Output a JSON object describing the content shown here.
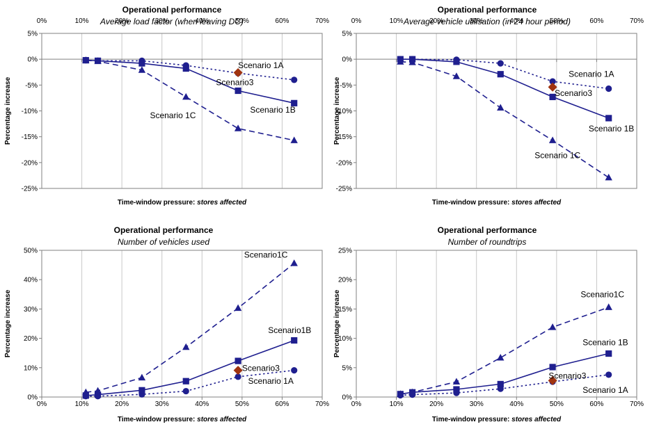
{
  "colors": {
    "series": "#1f1f8f",
    "scenario3": "#a0330f",
    "grid": "#c8c8c8",
    "axis": "#808080",
    "text": "#000000"
  },
  "chart_data": [
    {
      "type": "line",
      "title": "Operational performance",
      "subtitle": "Average load factor (when leaving DC)",
      "ylabel": "Percentage increase",
      "xlabel_prefix": "Time-window pressure: ",
      "xlabel_em": "stores affected",
      "xlim": [
        0,
        70
      ],
      "ylim": [
        -25,
        5
      ],
      "x_ticks": [
        0,
        10,
        20,
        30,
        40,
        50,
        60,
        70
      ],
      "y_ticks": [
        5,
        0,
        -5,
        -10,
        -15,
        -20,
        -25
      ],
      "x_tick_labels": [
        "0%",
        "10%",
        "20%",
        "30%",
        "40%",
        "50%",
        "60%",
        "70%"
      ],
      "y_tick_labels": [
        "5%",
        "0%",
        "-5%",
        "-10%",
        "-15%",
        "-20%",
        "-25%"
      ],
      "x_axis_position": "top",
      "grid": "vertical",
      "series": [
        {
          "name": "Scenario 1A",
          "marker": "circle",
          "dash": "dot",
          "x": [
            11,
            14,
            25,
            36,
            49,
            63
          ],
          "y": [
            -0.2,
            -0.3,
            -0.3,
            -1.2,
            -2.7,
            -4.0
          ],
          "label_anchor": [
            49,
            -1.2
          ]
        },
        {
          "name": "Scenario 1B",
          "marker": "square",
          "dash": "solid",
          "x": [
            11,
            14,
            25,
            36,
            49,
            63
          ],
          "y": [
            -0.2,
            -0.3,
            -0.8,
            -1.8,
            -6.1,
            -8.5
          ],
          "label_anchor": [
            52,
            -9.8
          ]
        },
        {
          "name": "Scenario 1C",
          "marker": "triangle",
          "dash": "dash",
          "x": [
            11,
            14,
            25,
            36,
            49,
            63
          ],
          "y": [
            -0.2,
            -0.4,
            -2.1,
            -7.3,
            -13.4,
            -15.7
          ],
          "label_anchor": [
            27,
            -10.9
          ]
        },
        {
          "name": "Scenario3",
          "marker": "diamond",
          "dash": "none",
          "x": [
            49
          ],
          "y": [
            -2.6
          ],
          "label_anchor": [
            43.5,
            -4.5
          ]
        }
      ]
    },
    {
      "type": "line",
      "title": "Operational performance",
      "subtitle": "Average vehicle utilisation (in 24 hour period)",
      "ylabel": "Percentage increase",
      "xlabel_prefix": "Time-window pressure: ",
      "xlabel_em": "stores affected",
      "xlim": [
        0,
        70
      ],
      "ylim": [
        -25,
        5
      ],
      "x_ticks": [
        0,
        10,
        20,
        30,
        40,
        50,
        60,
        70
      ],
      "y_ticks": [
        5,
        0,
        -5,
        -10,
        -15,
        -20,
        -25
      ],
      "x_tick_labels": [
        "0%",
        "10%",
        "20%",
        "30%",
        "40%",
        "50%",
        "60%",
        "70%"
      ],
      "y_tick_labels": [
        "5%",
        "0%",
        "-5%",
        "-10%",
        "-15%",
        "-20%",
        "-25%"
      ],
      "x_axis_position": "top",
      "grid": "vertical",
      "series": [
        {
          "name": "Scenario 1A",
          "marker": "circle",
          "dash": "dot",
          "x": [
            11,
            14,
            25,
            36,
            49,
            63
          ],
          "y": [
            0,
            0,
            -0.1,
            -0.8,
            -4.3,
            -5.7
          ],
          "label_anchor": [
            53,
            -2.9
          ]
        },
        {
          "name": "Scenario 1B",
          "marker": "square",
          "dash": "solid",
          "x": [
            11,
            14,
            25,
            36,
            49,
            63
          ],
          "y": [
            0,
            0,
            -0.5,
            -2.9,
            -7.3,
            -11.4
          ],
          "label_anchor": [
            58,
            -13.4
          ]
        },
        {
          "name": "Scenario 1C",
          "marker": "triangle",
          "dash": "dash",
          "x": [
            11,
            14,
            25,
            36,
            49,
            63
          ],
          "y": [
            -0.5,
            -0.6,
            -3.3,
            -9.4,
            -15.7,
            -22.9
          ],
          "label_anchor": [
            44.5,
            -18.6
          ]
        },
        {
          "name": "Scenario3",
          "marker": "diamond",
          "dash": "none",
          "x": [
            49
          ],
          "y": [
            -5.4
          ],
          "label_anchor": [
            49.5,
            -6.6
          ]
        }
      ]
    },
    {
      "type": "line",
      "title": "Operational performance",
      "subtitle": "Number of vehicles used",
      "ylabel": "Percentage increase",
      "xlabel_prefix": "Time-window pressure: ",
      "xlabel_em": "stores affected",
      "xlim": [
        0,
        70
      ],
      "ylim": [
        0,
        50
      ],
      "x_ticks": [
        0,
        10,
        20,
        30,
        40,
        50,
        60,
        70
      ],
      "y_ticks": [
        50,
        40,
        30,
        20,
        10,
        0
      ],
      "x_tick_labels": [
        "0%",
        "10%",
        "20%",
        "30%",
        "40%",
        "50%",
        "60%",
        "70%"
      ],
      "y_tick_labels": [
        "50%",
        "40%",
        "30%",
        "20%",
        "10%",
        "0%"
      ],
      "x_axis_position": "bottom",
      "grid": "vertical",
      "series": [
        {
          "name": "Scenario 1A",
          "marker": "circle",
          "dash": "dot",
          "x": [
            11,
            14,
            25,
            36,
            49,
            63
          ],
          "y": [
            0.3,
            0.3,
            0.9,
            2.0,
            6.9,
            9.1
          ],
          "label_anchor": [
            51.5,
            5.5
          ]
        },
        {
          "name": "Scenario1B",
          "marker": "square",
          "dash": "solid",
          "x": [
            11,
            14,
            25,
            36,
            49,
            63
          ],
          "y": [
            0.5,
            0.8,
            2.3,
            5.4,
            12.3,
            19.3
          ],
          "label_anchor": [
            56.5,
            22.8
          ]
        },
        {
          "name": "Scenario1C",
          "marker": "triangle",
          "dash": "dash",
          "x": [
            11,
            14,
            25,
            36,
            49,
            63
          ],
          "y": [
            1.6,
            2.1,
            6.6,
            17.0,
            30.3,
            45.6
          ],
          "label_anchor": [
            50.5,
            48.5
          ]
        },
        {
          "name": "Scenario3",
          "marker": "diamond",
          "dash": "none",
          "x": [
            49
          ],
          "y": [
            9.1
          ],
          "label_anchor": [
            50,
            9.8
          ]
        }
      ]
    },
    {
      "type": "line",
      "title": "Operational performance",
      "subtitle": "Number of roundtrips",
      "ylabel": "Percentage increase",
      "xlabel_prefix": "Time-window pressure: ",
      "xlabel_em": "stores affected",
      "xlim": [
        0,
        70
      ],
      "ylim": [
        0,
        25
      ],
      "x_ticks": [
        0,
        10,
        20,
        30,
        40,
        50,
        60,
        70
      ],
      "y_ticks": [
        25,
        20,
        15,
        10,
        5,
        0
      ],
      "x_tick_labels": [
        "0%",
        "10%",
        "20%",
        "30%",
        "40%",
        "50%",
        "60%",
        "70%"
      ],
      "y_tick_labels": [
        "25%",
        "20%",
        "15%",
        "10%",
        "5%",
        "0%"
      ],
      "x_axis_position": "bottom",
      "grid": "vertical",
      "series": [
        {
          "name": "Scenario 1A",
          "marker": "circle",
          "dash": "dot",
          "x": [
            11,
            14,
            25,
            36,
            49,
            63
          ],
          "y": [
            0.3,
            0.4,
            0.7,
            1.4,
            2.6,
            3.8
          ],
          "label_anchor": [
            56.5,
            1.2
          ]
        },
        {
          "name": "Scenario 1B",
          "marker": "square",
          "dash": "solid",
          "x": [
            11,
            14,
            25,
            36,
            49,
            63
          ],
          "y": [
            0.5,
            0.8,
            1.3,
            2.2,
            5.1,
            7.4
          ],
          "label_anchor": [
            56.5,
            9.3
          ]
        },
        {
          "name": "Scenario1C",
          "marker": "triangle",
          "dash": "dash",
          "x": [
            11,
            14,
            25,
            36,
            49,
            63
          ],
          "y": [
            0.5,
            0.8,
            2.6,
            6.7,
            11.9,
            15.3
          ],
          "label_anchor": [
            56,
            17.5
          ]
        },
        {
          "name": "Scenario3",
          "marker": "diamond",
          "dash": "none",
          "x": [
            49
          ],
          "y": [
            2.8
          ],
          "label_anchor": [
            48,
            3.6
          ]
        }
      ]
    }
  ]
}
